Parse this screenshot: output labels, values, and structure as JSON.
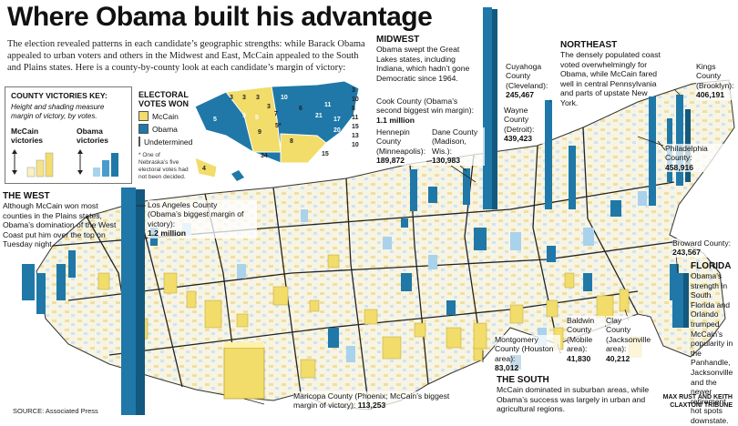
{
  "title": "Where Obama built his advantage",
  "intro": "The election revealed patterns in each candidate’s geographic strengths: while Barack Obama appealed to urban voters and others in the Midwest and East, McCain appealed to the South and Plains states. Here is a county-by-county look at each candidate’s margin of victory:",
  "key": {
    "title": "COUNTY VICTORIES KEY:",
    "desc": "Height and shading measure margin of victory, by votes.",
    "mccain": "McCain victories",
    "obama": "Obama victories"
  },
  "electoral": {
    "title": "ELECTORAL VOTES WON",
    "mccain": "McCain",
    "obama": "Obama",
    "undetermined": "Undetermined",
    "note": "* One of Nebraska’s five electoral votes had not been decided."
  },
  "colors": {
    "mccain": "#f2dc6a",
    "obama": "#1f78a8",
    "obama_light": "#a9d2ec",
    "land": "#f6f3e2",
    "undetermined": "#ffffff"
  },
  "states_ev": [
    "3",
    "3",
    "3",
    "10",
    "55",
    "5",
    "9",
    "5",
    "7",
    "6",
    "11",
    "21",
    "17",
    "9",
    "20",
    "8",
    "34",
    "15",
    "27",
    "4",
    "3",
    "5*",
    "3",
    "10",
    "8",
    "11",
    "15",
    "13",
    "10",
    "3",
    "31",
    "4",
    "11",
    "3",
    "4",
    "3",
    "3",
    "4",
    "7",
    "9"
  ],
  "regions": {
    "west": {
      "title": "THE WEST",
      "text": "Although McCain won most counties in the Plains states, Obama’s domination of the West Coast put him over the top on Tuesday night."
    },
    "midwest": {
      "title": "MIDWEST",
      "text": "Obama swept the Great Lakes states, including Indiana, which hadn’t gone Democratic since 1964."
    },
    "northeast": {
      "title": "NORTHEAST",
      "text": "The densely populated coast voted overwhelmingly for Obama, while McCain fared well in central Pennsylvania and parts of upstate New York."
    },
    "south": {
      "title": "THE SOUTH",
      "text": "McCain dominated in suburban areas, while Obama’s success was largely in urban and agricultural regions."
    },
    "florida": {
      "title": "FLORIDA",
      "text": "Obama’s strength in South Florida and Orlando trumped McCain’s popularity in the Panhandle, Jacksonville and the newer retirement hot spots downstate."
    }
  },
  "counties": {
    "la": {
      "line1": "Los Angeles County",
      "line2": "(Obama’s biggest margin of victory):",
      "value": "1.2 million"
    },
    "cook": {
      "line1": "Cook County (Obama’s second biggest win margin):",
      "value": "1.1 million"
    },
    "hennepin": {
      "line1": "Hennepin County (Minneapolis):",
      "value": "189,872"
    },
    "dane": {
      "line1": "Dane County (Madison, Wis.):",
      "value": "130,983"
    },
    "cuyahoga": {
      "line1": "Cuyahoga County (Cleveland):",
      "value": "245,467"
    },
    "wayne": {
      "line1": "Wayne County (Detroit):",
      "value": "439,423"
    },
    "kings": {
      "line1": "Kings County (Brooklyn):",
      "value": "406,191"
    },
    "philadelphia": {
      "line1": "Philadelphia County:",
      "value": "458,916"
    },
    "broward": {
      "line1": "Broward County:",
      "value": "243,567"
    },
    "montgomery": {
      "line1": "Montgomery County (Houston area):",
      "value": "83,012"
    },
    "baldwin": {
      "line1": "Baldwin County (Mobile area):",
      "value": "41,830"
    },
    "clay": {
      "line1": "Clay County (Jacksonville area):",
      "value": "40,212"
    },
    "maricopa": {
      "line1": "Maricopa County (Phoenix; McCain’s biggest margin of victory):",
      "value": "113,253"
    }
  },
  "source": "SOURCE: Associated Press",
  "credit": "MAX RUST AND KEITH CLAXTON/ TRIBUNE"
}
